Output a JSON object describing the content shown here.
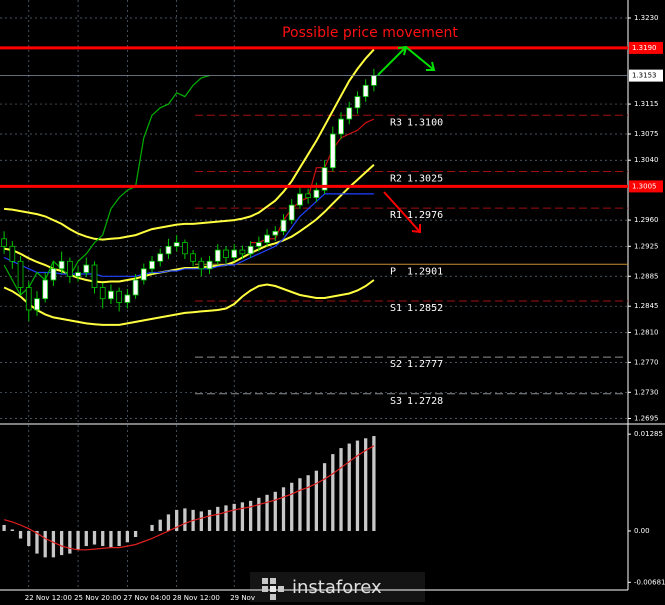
{
  "chart_data": [
    {
      "type": "candlestick",
      "annotation": "Possible price movement",
      "watermark": "instaforex",
      "up_color": "#ffffff",
      "down_color": "#000000",
      "candle_stroke": "#00c800",
      "grid": true,
      "categories": [
        null,
        null,
        null,
        "22 Nov 12:00",
        null,
        null,
        null,
        null,
        null,
        "25 Nov 20:00",
        null,
        null,
        null,
        null,
        null,
        "27 Nov 04:00",
        null,
        null,
        null,
        null,
        null,
        "28 Nov 12:00",
        null,
        null,
        null,
        null,
        null,
        null,
        "29 Nov",
        null,
        null,
        null,
        null,
        null,
        null,
        null,
        null,
        null,
        null,
        null,
        null,
        null,
        null,
        null,
        null,
        null
      ],
      "candles": [
        [
          1.2935,
          1.2945,
          1.2915,
          1.2925
        ],
        [
          1.2925,
          1.2932,
          1.2895,
          1.2905
        ],
        [
          1.2905,
          1.2912,
          1.286,
          1.287
        ],
        [
          1.287,
          1.2878,
          1.2825,
          1.284
        ],
        [
          1.284,
          1.2865,
          1.2832,
          1.2855
        ],
        [
          1.2855,
          1.289,
          1.285,
          1.288
        ],
        [
          1.288,
          1.2905,
          1.2872,
          1.2895
        ],
        [
          1.2895,
          1.2918,
          1.2888,
          1.2905
        ],
        [
          1.2905,
          1.291,
          1.2876,
          1.2885
        ],
        [
          1.2885,
          1.2898,
          1.2878,
          1.289
        ],
        [
          1.289,
          1.291,
          1.2884,
          1.29
        ],
        [
          1.29,
          1.2905,
          1.2862,
          1.287
        ],
        [
          1.287,
          1.2876,
          1.2842,
          1.2855
        ],
        [
          1.2855,
          1.2874,
          1.2848,
          1.2865
        ],
        [
          1.2865,
          1.287,
          1.2838,
          1.285
        ],
        [
          1.285,
          1.2868,
          1.2842,
          1.286
        ],
        [
          1.286,
          1.2888,
          1.2855,
          1.288
        ],
        [
          1.288,
          1.2902,
          1.2874,
          1.2895
        ],
        [
          1.2895,
          1.2912,
          1.2888,
          1.2905
        ],
        [
          1.2905,
          1.2922,
          1.2898,
          1.2915
        ],
        [
          1.2915,
          1.2935,
          1.2908,
          1.2925
        ],
        [
          1.2925,
          1.294,
          1.2918,
          1.293
        ],
        [
          1.293,
          1.2934,
          1.2908,
          1.2915
        ],
        [
          1.2915,
          1.292,
          1.2898,
          1.2905
        ],
        [
          1.2905,
          1.291,
          1.2885,
          1.2895
        ],
        [
          1.2895,
          1.2912,
          1.2888,
          1.2905
        ],
        [
          1.2905,
          1.2928,
          1.29,
          1.292
        ],
        [
          1.292,
          1.2925,
          1.2902,
          1.291
        ],
        [
          1.291,
          1.2928,
          1.2905,
          1.292
        ],
        [
          1.292,
          1.2926,
          1.2908,
          1.2915
        ],
        [
          1.2915,
          1.2932,
          1.291,
          1.2925
        ],
        [
          1.2925,
          1.2938,
          1.2918,
          1.293
        ],
        [
          1.293,
          1.2948,
          1.2925,
          1.294
        ],
        [
          1.294,
          1.2952,
          1.2932,
          1.2945
        ],
        [
          1.2945,
          1.2968,
          1.294,
          1.296
        ],
        [
          1.296,
          1.2988,
          1.2955,
          1.298
        ],
        [
          1.298,
          1.3004,
          1.2975,
          1.2995
        ],
        [
          1.2995,
          1.3002,
          1.2982,
          1.299
        ],
        [
          1.299,
          1.301,
          1.2984,
          1.3
        ],
        [
          1.3,
          1.304,
          1.2995,
          1.303
        ],
        [
          1.303,
          1.3085,
          1.3025,
          1.3075
        ],
        [
          1.3075,
          1.3104,
          1.3068,
          1.3095
        ],
        [
          1.3095,
          1.3118,
          1.3088,
          1.311
        ],
        [
          1.311,
          1.3132,
          1.3102,
          1.3125
        ],
        [
          1.3125,
          1.3148,
          1.3118,
          1.314
        ],
        [
          1.314,
          1.3162,
          1.3132,
          1.3153
        ]
      ],
      "lines": [
        {
          "color": "#ffff40",
          "values": [
            1.2975,
            1.2974,
            1.2972,
            1.297,
            1.2968,
            1.2965,
            1.296,
            1.2955,
            1.2948,
            1.2942,
            1.2938,
            1.2935,
            1.2934,
            1.2935,
            1.2936,
            1.2938,
            1.294,
            1.2944,
            1.2948,
            1.295,
            1.2952,
            1.2954,
            1.2955,
            1.2955,
            1.2956,
            1.2957,
            1.2958,
            1.2959,
            1.296,
            1.2962,
            1.2965,
            1.297,
            1.2978,
            1.2986,
            1.2998,
            1.3012,
            1.303,
            1.3048,
            1.3066,
            1.3086,
            1.3106,
            1.3126,
            1.3146,
            1.3162,
            1.3176,
            1.3188
          ]
        },
        {
          "color": "#ffff40",
          "values": [
            1.2922,
            1.292,
            1.2915,
            1.2909,
            1.2904,
            1.29,
            1.2895,
            1.2892,
            1.2887,
            1.2883,
            1.288,
            1.2878,
            1.2877,
            1.2878,
            1.2878,
            1.288,
            1.2882,
            1.2885,
            1.2888,
            1.289,
            1.2892,
            1.2894,
            1.2896,
            1.2896,
            1.2897,
            1.2898,
            1.2899,
            1.29,
            1.2904,
            1.291,
            1.2916,
            1.2921,
            1.2926,
            1.2929,
            1.2933,
            1.2938,
            1.2945,
            1.2953,
            1.2961,
            1.2971,
            1.2982,
            1.2993,
            1.3004,
            1.3014,
            1.3024,
            1.3034
          ]
        },
        {
          "color": "#ffff40",
          "values": [
            1.287,
            1.2865,
            1.2858,
            1.2848,
            1.284,
            1.2834,
            1.283,
            1.2828,
            1.2826,
            1.2824,
            1.2822,
            1.2821,
            1.282,
            1.282,
            1.282,
            1.2822,
            1.2824,
            1.2826,
            1.2828,
            1.283,
            1.2832,
            1.2834,
            1.2836,
            1.2837,
            1.2838,
            1.2839,
            1.284,
            1.2842,
            1.2848,
            1.2858,
            1.2866,
            1.2872,
            1.2874,
            1.2872,
            1.2868,
            1.2864,
            1.286,
            1.2858,
            1.2856,
            1.2856,
            1.2858,
            1.286,
            1.2862,
            1.2866,
            1.2872,
            1.288
          ]
        },
        {
          "color": "#2040ff",
          "values": [
            1.291,
            1.2905,
            1.29,
            1.2895,
            1.289,
            1.289,
            1.289,
            1.2888,
            1.2888,
            1.2888,
            1.2888,
            1.2888,
            1.2885,
            1.2885,
            1.2885,
            1.2885,
            1.2885,
            1.2888,
            1.289,
            1.289,
            1.2892,
            1.2892,
            1.2895,
            1.2895,
            1.2895,
            1.2895,
            1.2898,
            1.29,
            1.29,
            1.2905,
            1.291,
            1.2915,
            1.292,
            1.2925,
            1.2935,
            1.295,
            1.2965,
            1.2975,
            1.2985,
            1.2995,
            1.2995,
            1.2995,
            1.2995,
            1.2995,
            1.2995,
            1.2995
          ]
        },
        {
          "color": "#d01010",
          "values": [
            null,
            null,
            null,
            null,
            null,
            null,
            null,
            null,
            null,
            null,
            null,
            null,
            null,
            null,
            null,
            null,
            null,
            null,
            null,
            null,
            null,
            null,
            null,
            null,
            null,
            null,
            null,
            null,
            null,
            null,
            1.293,
            1.293,
            1.2935,
            1.2935,
            1.296,
            1.2975,
            1.2985,
            1.299,
            1.303,
            1.303,
            1.3055,
            1.307,
            1.3075,
            1.308,
            1.309,
            1.3095
          ]
        },
        {
          "color": "#00b000",
          "values": [
            1.29,
            1.288,
            1.286,
            1.287,
            1.289,
            1.288,
            1.2905,
            1.2895,
            1.2885,
            1.2905,
            1.2915,
            1.293,
            1.294,
            1.2975,
            1.299,
            1.3,
            1.3005,
            1.307,
            1.31,
            1.311,
            1.3115,
            1.313,
            1.3125,
            1.314,
            1.315,
            1.3153,
            null,
            null,
            null,
            null,
            null,
            null,
            null,
            null,
            null,
            null,
            null,
            null,
            null,
            null,
            null,
            null,
            null,
            null,
            null,
            null
          ]
        }
      ],
      "levels": [
        {
          "value": 1.319,
          "label": "1.3190",
          "color": "#ff0000"
        },
        {
          "value": 1.3005,
          "label": "1.3005",
          "color": "#ff0000"
        }
      ],
      "pivots": [
        {
          "name": "R3",
          "value": 1.31,
          "label": "1.3100",
          "color": "#a01010"
        },
        {
          "name": "R2",
          "value": 1.3025,
          "label": "1.3025",
          "color": "#a01010"
        },
        {
          "name": "R1",
          "value": 1.2976,
          "label": "1.2976",
          "color": "#a01010"
        },
        {
          "name": "P",
          "value": 1.2901,
          "label": "1.2901",
          "color": "#c89030"
        },
        {
          "name": "S1",
          "value": 1.2852,
          "label": "1.2852",
          "color": "#a01010"
        },
        {
          "name": "S2",
          "value": 1.2777,
          "label": "1.2777",
          "color": "#909090"
        },
        {
          "name": "S3",
          "value": 1.2728,
          "label": "1.2728",
          "color": "#909090"
        }
      ],
      "ylim": [
        1.2689,
        1.3254
      ],
      "yticks": [
        {
          "value": 1.323,
          "label": "1.3230"
        },
        1.3115,
        1.3075,
        {
          "value": 1.304,
          "label": "1.3040"
        },
        {
          "value": 1.296,
          "label": "1.2960"
        },
        1.2925,
        1.2885,
        1.2845,
        {
          "value": 1.281,
          "label": "1.2810"
        },
        {
          "value": 1.277,
          "label": "1.2770"
        },
        {
          "value": 1.273,
          "label": "1.2730"
        },
        1.2695
      ]
    },
    {
      "type": "macd",
      "color": "#c8c8c8",
      "signal_color": "#e02020",
      "values": [
        0.0008,
        0.0002,
        -0.001,
        -0.002,
        -0.003,
        -0.0035,
        -0.0035,
        -0.0032,
        -0.003,
        -0.0025,
        -0.002,
        -0.0018,
        -0.002,
        -0.0022,
        -0.002,
        -0.0015,
        -0.0008,
        0.0,
        0.0008,
        0.0015,
        0.0022,
        0.0028,
        0.003,
        0.0028,
        0.0026,
        0.0028,
        0.0032,
        0.0034,
        0.0036,
        0.0038,
        0.004,
        0.0044,
        0.0048,
        0.0052,
        0.0058,
        0.0064,
        0.007,
        0.0074,
        0.008,
        0.009,
        0.0102,
        0.011,
        0.0116,
        0.012,
        0.0123,
        0.0126
      ],
      "signal": [
        0.0015,
        0.0012,
        0.0008,
        0.0003,
        -0.0003,
        -0.001,
        -0.0015,
        -0.002,
        -0.0023,
        -0.0025,
        -0.0025,
        -0.0024,
        -0.0023,
        -0.0022,
        -0.0022,
        -0.002,
        -0.0018,
        -0.0014,
        -0.001,
        -0.0005,
        0.0,
        0.0005,
        0.001,
        0.0014,
        0.0017,
        0.002,
        0.0022,
        0.0025,
        0.0028,
        0.003,
        0.0032,
        0.0035,
        0.0038,
        0.0041,
        0.0045,
        0.0049,
        0.0054,
        0.0058,
        0.0063,
        0.0069,
        0.0076,
        0.0084,
        0.0092,
        0.01,
        0.0107,
        0.0113
      ],
      "ylim": [
        -0.0077,
        0.0138
      ],
      "yticks": [
        0.01285,
        {
          "value": 0,
          "label": "0.00"
        },
        -0.00681
      ]
    }
  ]
}
